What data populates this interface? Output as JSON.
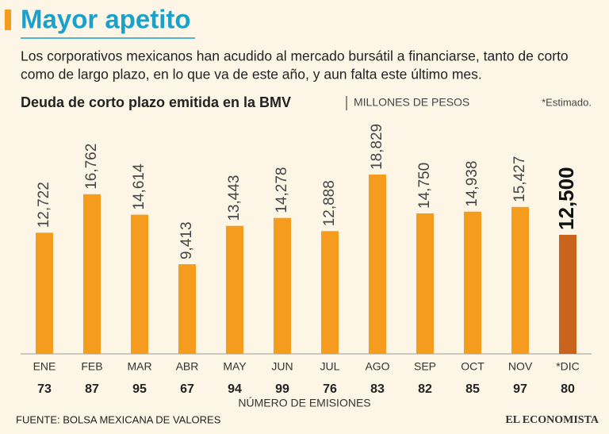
{
  "chart_data": {
    "type": "bar",
    "title": "Mayor apetito",
    "subtitle": [
      "Los corporativos mexicanos han acudido al mercado bursátil a financiarse, tanto de corto",
      "como de largo plazo, en lo que va de este año, y aun falta este último mes."
    ],
    "chart_title": "Deuda de corto plazo emitida en la BMV",
    "unit": "MILLONES DE PESOS",
    "note": "*Estimado.",
    "categories": [
      "ENE",
      "FEB",
      "MAR",
      "ABR",
      "MAY",
      "JUN",
      "JUL",
      "AGO",
      "SEP",
      "OCT",
      "NOV",
      "*DIC"
    ],
    "values": [
      12722,
      16762,
      14614,
      9413,
      13443,
      14278,
      12888,
      18829,
      14750,
      14938,
      15427,
      12500
    ],
    "value_labels": [
      "12,722",
      "16,762",
      "14,614",
      "9,413",
      "13,443",
      "14,278",
      "12,888",
      "18,829",
      "14,750",
      "14,938",
      "15,427",
      "12,500"
    ],
    "colors": [
      "#f59c1f",
      "#f59c1f",
      "#f59c1f",
      "#f59c1f",
      "#f59c1f",
      "#f59c1f",
      "#f59c1f",
      "#f59c1f",
      "#f59c1f",
      "#f59c1f",
      "#f59c1f",
      "#c9641c"
    ],
    "emissions": {
      "label": "NÚMERO DE EMISIONES",
      "values": [
        73,
        87,
        95,
        67,
        94,
        99,
        76,
        83,
        82,
        85,
        97,
        80
      ]
    },
    "source": "FUENTE: BOLSA MEXICANA DE VALORES",
    "brand": "EL ECONOMISTA"
  }
}
